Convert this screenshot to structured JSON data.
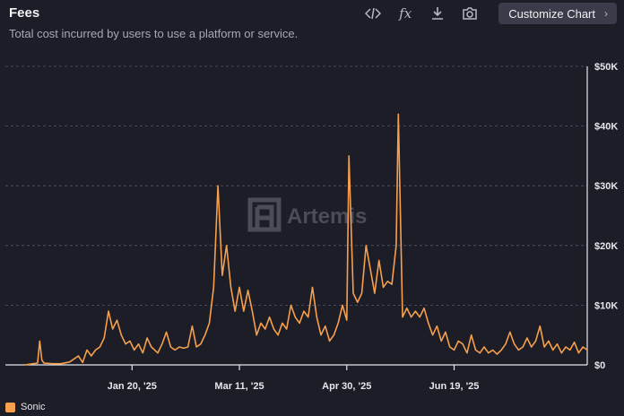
{
  "header": {
    "title": "Fees",
    "subtitle": "Total cost incurred by users to use a platform or service.",
    "customize_label": "Customize Chart",
    "chevron": "›",
    "fx_label": "fx"
  },
  "toolbar_icons": [
    "code-icon",
    "fx-icon",
    "download-icon",
    "camera-icon"
  ],
  "watermark": "Artemis",
  "colors": {
    "background": "#1c1d26",
    "series": "#f6a04d",
    "grid": "#4a4b57",
    "axis_text": "#e6e6ec"
  },
  "chart_data": {
    "type": "line",
    "title": "Fees",
    "xlabel": "",
    "ylabel": "",
    "grid": true,
    "legend_placement": "bottom-left",
    "y_ticks": [
      "$0",
      "$10K",
      "$20K",
      "$30K",
      "$40K",
      "$50K"
    ],
    "ylim": [
      0,
      50000
    ],
    "x_ticks": [
      {
        "label": "Jan 20, '25",
        "date": "2025-01-20"
      },
      {
        "label": "Mar 11, '25",
        "date": "2025-03-11"
      },
      {
        "label": "Apr 30, '25",
        "date": "2025-04-30"
      },
      {
        "label": "Jun 19, '25",
        "date": "2025-06-19"
      }
    ],
    "xlim": [
      "2024-11-22",
      "2025-08-20"
    ],
    "series": [
      {
        "name": "Sonic",
        "color": "#f6a04d",
        "points": [
          [
            "2024-12-01",
            0
          ],
          [
            "2024-12-05",
            200
          ],
          [
            "2024-12-07",
            300
          ],
          [
            "2024-12-08",
            4000
          ],
          [
            "2024-12-09",
            800
          ],
          [
            "2024-12-10",
            300
          ],
          [
            "2024-12-14",
            200
          ],
          [
            "2024-12-18",
            200
          ],
          [
            "2024-12-22",
            500
          ],
          [
            "2024-12-26",
            1500
          ],
          [
            "2024-12-28",
            400
          ],
          [
            "2024-12-30",
            2500
          ],
          [
            "2025-01-01",
            1500
          ],
          [
            "2025-01-03",
            2500
          ],
          [
            "2025-01-05",
            3000
          ],
          [
            "2025-01-07",
            4500
          ],
          [
            "2025-01-09",
            9000
          ],
          [
            "2025-01-11",
            6000
          ],
          [
            "2025-01-13",
            7500
          ],
          [
            "2025-01-15",
            5000
          ],
          [
            "2025-01-17",
            3500
          ],
          [
            "2025-01-19",
            4000
          ],
          [
            "2025-01-21",
            2500
          ],
          [
            "2025-01-23",
            3500
          ],
          [
            "2025-01-25",
            2000
          ],
          [
            "2025-01-27",
            4500
          ],
          [
            "2025-01-29",
            3000
          ],
          [
            "2025-02-01",
            2000
          ],
          [
            "2025-02-03",
            3500
          ],
          [
            "2025-02-05",
            5500
          ],
          [
            "2025-02-07",
            3000
          ],
          [
            "2025-02-09",
            2500
          ],
          [
            "2025-02-11",
            3000
          ],
          [
            "2025-02-13",
            2800
          ],
          [
            "2025-02-15",
            3000
          ],
          [
            "2025-02-17",
            6500
          ],
          [
            "2025-02-19",
            3000
          ],
          [
            "2025-02-21",
            3500
          ],
          [
            "2025-02-23",
            5000
          ],
          [
            "2025-02-25",
            7000
          ],
          [
            "2025-02-27",
            13000
          ],
          [
            "2025-03-01",
            30000
          ],
          [
            "2025-03-03",
            15000
          ],
          [
            "2025-03-05",
            20000
          ],
          [
            "2025-03-07",
            13000
          ],
          [
            "2025-03-09",
            9000
          ],
          [
            "2025-03-11",
            13000
          ],
          [
            "2025-03-13",
            9000
          ],
          [
            "2025-03-15",
            12500
          ],
          [
            "2025-03-17",
            9000
          ],
          [
            "2025-03-19",
            5000
          ],
          [
            "2025-03-21",
            7000
          ],
          [
            "2025-03-23",
            6000
          ],
          [
            "2025-03-25",
            8000
          ],
          [
            "2025-03-27",
            6000
          ],
          [
            "2025-03-29",
            5000
          ],
          [
            "2025-03-31",
            7000
          ],
          [
            "2025-04-02",
            6000
          ],
          [
            "2025-04-04",
            10000
          ],
          [
            "2025-04-06",
            8000
          ],
          [
            "2025-04-08",
            7000
          ],
          [
            "2025-04-10",
            9000
          ],
          [
            "2025-04-12",
            8000
          ],
          [
            "2025-04-14",
            13000
          ],
          [
            "2025-04-16",
            8000
          ],
          [
            "2025-04-18",
            5000
          ],
          [
            "2025-04-20",
            6500
          ],
          [
            "2025-04-22",
            4000
          ],
          [
            "2025-04-24",
            5000
          ],
          [
            "2025-04-26",
            7000
          ],
          [
            "2025-04-28",
            10000
          ],
          [
            "2025-04-30",
            7500
          ],
          [
            "2025-05-01",
            35000
          ],
          [
            "2025-05-03",
            12000
          ],
          [
            "2025-05-05",
            10500
          ],
          [
            "2025-05-07",
            12000
          ],
          [
            "2025-05-09",
            20000
          ],
          [
            "2025-05-11",
            16000
          ],
          [
            "2025-05-13",
            12000
          ],
          [
            "2025-05-15",
            17500
          ],
          [
            "2025-05-17",
            13000
          ],
          [
            "2025-05-19",
            14000
          ],
          [
            "2025-05-21",
            13500
          ],
          [
            "2025-05-23",
            20000
          ],
          [
            "2025-05-24",
            42000
          ],
          [
            "2025-05-26",
            8000
          ],
          [
            "2025-05-28",
            9500
          ],
          [
            "2025-05-30",
            8000
          ],
          [
            "2025-06-01",
            9000
          ],
          [
            "2025-06-03",
            8000
          ],
          [
            "2025-06-05",
            9500
          ],
          [
            "2025-06-07",
            7000
          ],
          [
            "2025-06-09",
            5000
          ],
          [
            "2025-06-11",
            6500
          ],
          [
            "2025-06-13",
            4000
          ],
          [
            "2025-06-15",
            5500
          ],
          [
            "2025-06-17",
            3000
          ],
          [
            "2025-06-19",
            2500
          ],
          [
            "2025-06-21",
            4000
          ],
          [
            "2025-06-23",
            3500
          ],
          [
            "2025-06-25",
            2000
          ],
          [
            "2025-06-27",
            5000
          ],
          [
            "2025-06-29",
            2500
          ],
          [
            "2025-07-01",
            2000
          ],
          [
            "2025-07-03",
            3000
          ],
          [
            "2025-07-05",
            2000
          ],
          [
            "2025-07-07",
            2500
          ],
          [
            "2025-07-09",
            1800
          ],
          [
            "2025-07-11",
            2500
          ],
          [
            "2025-07-13",
            3500
          ],
          [
            "2025-07-15",
            5500
          ],
          [
            "2025-07-17",
            3500
          ],
          [
            "2025-07-19",
            2500
          ],
          [
            "2025-07-21",
            3000
          ],
          [
            "2025-07-23",
            4500
          ],
          [
            "2025-07-25",
            3000
          ],
          [
            "2025-07-27",
            4000
          ],
          [
            "2025-07-29",
            6500
          ],
          [
            "2025-07-31",
            3000
          ],
          [
            "2025-08-02",
            4000
          ],
          [
            "2025-08-04",
            2500
          ],
          [
            "2025-08-06",
            3500
          ],
          [
            "2025-08-08",
            2000
          ],
          [
            "2025-08-10",
            3000
          ],
          [
            "2025-08-12",
            2500
          ],
          [
            "2025-08-14",
            3800
          ],
          [
            "2025-08-16",
            2000
          ],
          [
            "2025-08-18",
            3000
          ],
          [
            "2025-08-20",
            2500
          ]
        ]
      }
    ]
  }
}
